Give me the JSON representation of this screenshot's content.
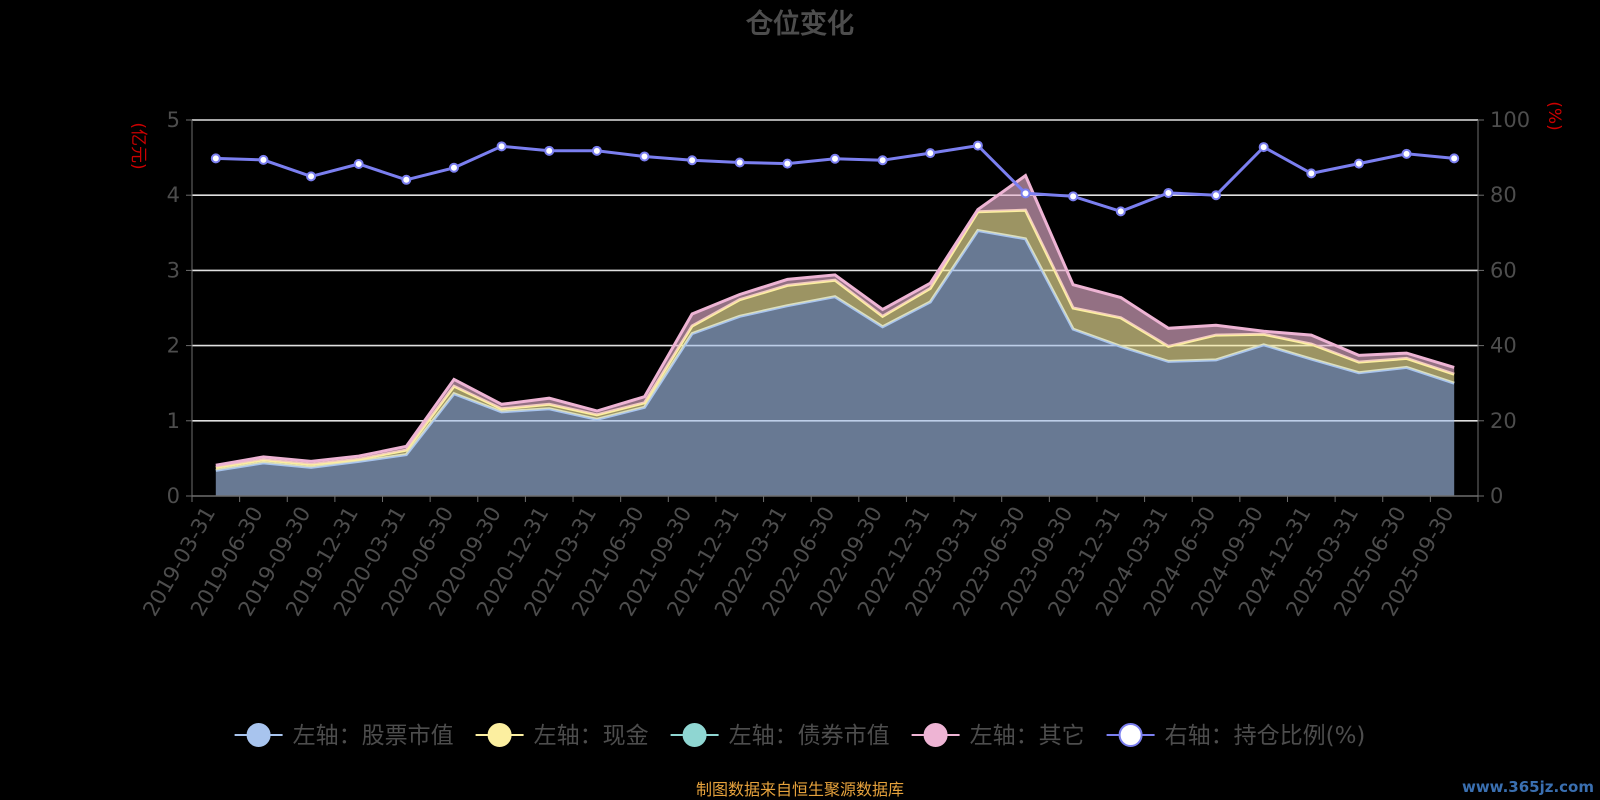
{
  "chart_data": {
    "type": "area",
    "title": "仓位变化",
    "y_left_unit": "(亿元)",
    "y_right_unit": "(%)",
    "y_left_range": [
      0,
      5
    ],
    "y_left_ticks": [
      "0",
      "1",
      "2",
      "3",
      "4",
      "5"
    ],
    "y_right_range": [
      0,
      100
    ],
    "y_right_ticks": [
      "0",
      "20",
      "40",
      "60",
      "80",
      "100"
    ],
    "grid": true,
    "stacked": true,
    "categories": [
      "2019-03-31",
      "2019-06-30",
      "2019-09-30",
      "2019-12-31",
      "2020-03-31",
      "2020-06-30",
      "2020-09-30",
      "2020-12-31",
      "2021-03-31",
      "2021-06-30",
      "2021-09-30",
      "2021-12-31",
      "2022-03-31",
      "2022-06-30",
      "2022-09-30",
      "2022-12-31",
      "2023-03-31",
      "2023-06-30",
      "2023-09-30",
      "2023-12-31",
      "2024-03-31",
      "2024-06-30",
      "2024-09-30",
      "2024-12-31",
      "2025-03-31",
      "2025-06-30",
      "2025-09-30"
    ],
    "series": [
      {
        "name": "左轴：股票市值",
        "axis": "left",
        "color": "#a8c4ee",
        "values": [
          0.34,
          0.44,
          0.38,
          0.46,
          0.55,
          1.36,
          1.12,
          1.16,
          1.02,
          1.18,
          2.16,
          2.39,
          2.53,
          2.65,
          2.25,
          2.58,
          3.53,
          3.42,
          2.22,
          1.99,
          1.79,
          1.81,
          2.01,
          1.82,
          1.64,
          1.71,
          1.5
        ]
      },
      {
        "name": "左轴：现金",
        "axis": "left",
        "color": "#fcefa0",
        "values": [
          0.04,
          0.04,
          0.04,
          0.03,
          0.06,
          0.1,
          0.04,
          0.06,
          0.06,
          0.06,
          0.1,
          0.22,
          0.27,
          0.22,
          0.14,
          0.18,
          0.25,
          0.38,
          0.28,
          0.38,
          0.2,
          0.33,
          0.14,
          0.2,
          0.14,
          0.12,
          0.12
        ]
      },
      {
        "name": "左轴：债券市值",
        "axis": "left",
        "color": "#8fd6d2",
        "values": [
          0,
          0,
          0,
          0,
          0,
          0,
          0,
          0,
          0,
          0,
          0,
          0,
          0,
          0,
          0,
          0,
          0,
          0,
          0,
          0,
          0,
          0,
          0,
          0,
          0,
          0,
          0
        ]
      },
      {
        "name": "左轴：其它",
        "axis": "left",
        "color": "#eeb4d4",
        "values": [
          0.03,
          0.04,
          0.04,
          0.04,
          0.05,
          0.09,
          0.06,
          0.08,
          0.05,
          0.08,
          0.16,
          0.07,
          0.08,
          0.07,
          0.09,
          0.07,
          0.03,
          0.46,
          0.31,
          0.27,
          0.24,
          0.13,
          0.04,
          0.12,
          0.09,
          0.07,
          0.09
        ]
      },
      {
        "name": "右轴：持仓比例(%)",
        "axis": "right",
        "color": "#7b7ff0",
        "values": [
          89.8,
          89.4,
          85.0,
          88.3,
          84.1,
          87.3,
          93.0,
          91.8,
          91.8,
          90.3,
          89.3,
          88.7,
          88.4,
          89.7,
          89.3,
          91.2,
          93.2,
          80.5,
          79.7,
          75.7,
          80.6,
          80.0,
          92.8,
          85.8,
          88.4,
          91.0,
          89.8
        ]
      }
    ],
    "legend_position": "bottom",
    "source_note": "制图数据来自恒生聚源数据库"
  },
  "watermark": "www.365jz.com"
}
